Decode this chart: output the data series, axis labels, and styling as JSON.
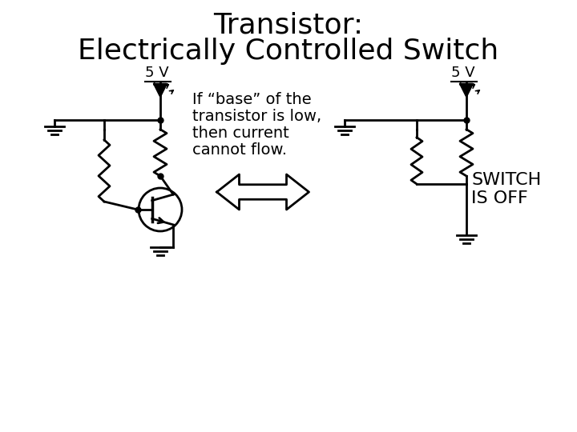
{
  "title_line1": "Transistor:",
  "title_line2": "Electrically Controlled Switch",
  "description_line1": "If “base” of the",
  "description_line2": "transistor is low,",
  "description_line3": "then current",
  "description_line4": "cannot flow.",
  "switch_label_line1": "SWITCH",
  "switch_label_line2": "IS OFF",
  "voltage_label": "5 V",
  "bg_color": "#ffffff",
  "fg_color": "#000000",
  "title_fontsize": 26,
  "desc_fontsize": 14,
  "switch_fontsize": 16,
  "voltage_fontsize": 13
}
